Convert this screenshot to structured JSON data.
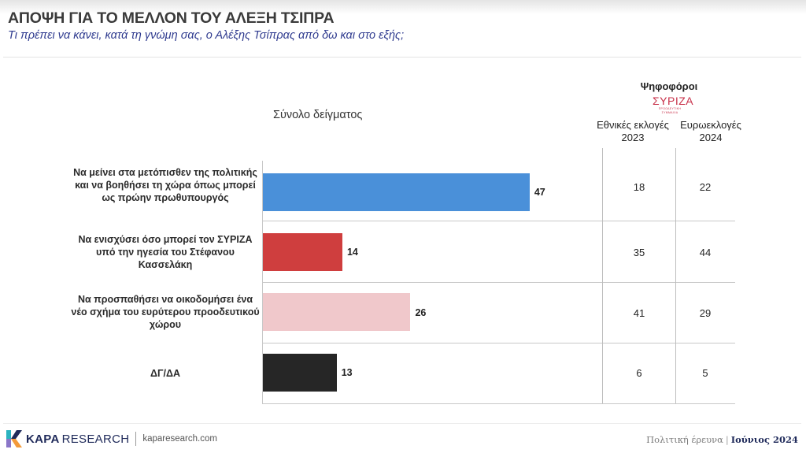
{
  "header": {
    "title": "ΑΠΟΨΗ ΓΙΑ ΤΟ ΜΕΛΛΟΝ ΤΟΥ ΑΛΕΞΗ ΤΣΙΠΡΑ",
    "subtitle": "Τι πρέπει να κάνει, κατά τη γνώμη σας, ο Αλέξης Τσίπρας από δω και στο εξής;"
  },
  "chart": {
    "sample_label": "Σύνολο δείγματος",
    "voters_heading": "Ψηφοφόροι",
    "party_logo": {
      "word": "ΣΥΡΙΖΑ",
      "tagline": "ΠΡΟΟΔΕΥΤΙΚΗ ΣΥΜΜΑΧΙΑ",
      "icon": "syriza-logo",
      "color": "#c8314a"
    },
    "columns": [
      {
        "line1": "Εθνικές εκλογές",
        "line2": "2023"
      },
      {
        "line1": "Ευρωεκλογές",
        "line2": "2024"
      }
    ],
    "rows": [
      {
        "label": "Να μείνει στα μετόπισθεν της πολιτικής και να βοηθήσει τη χώρα όπως μπορεί ως πρώην πρωθυπουργός",
        "value": "47",
        "col1": "18",
        "col2": "22",
        "color": "#4a90d9"
      },
      {
        "label": "Να ενισχύσει όσο μπορεί τον ΣΥΡΙΖΑ υπό την ηγεσία του Στέφανου Κασσελάκη",
        "value": "14",
        "col1": "35",
        "col2": "44",
        "color": "#cf3e3e"
      },
      {
        "label": "Να προσπαθήσει να οικοδομήσει ένα νέο σχήμα του ευρύτερου προοδευτικού χώρου",
        "value": "26",
        "col1": "41",
        "col2": "29",
        "color": "#f0c8cb"
      },
      {
        "label": "ΔΓ/ΔΑ",
        "value": "13",
        "col1": "6",
        "col2": "5",
        "color": "#262626"
      }
    ]
  },
  "chart_data": {
    "type": "bar",
    "orientation": "horizontal",
    "title": "ΑΠΟΨΗ ΓΙΑ ΤΟ ΜΕΛΛΟΝ ΤΟΥ ΑΛΕΞΗ ΤΣΙΠΡΑ",
    "subtitle": "Τι πρέπει να κάνει, κατά τη γνώμη σας, ο Αλέξης Τσίπρας από δω και στο εξής;",
    "categories": [
      "Να μείνει στα μετόπισθεν της πολιτικής και να βοηθήσει τη χώρα όπως μπορεί ως πρώην πρωθυπουργός",
      "Να ενισχύσει όσο μπορεί τον ΣΥΡΙΖΑ υπό την ηγεσία του Στέφανου Κασσελάκη",
      "Να προσπαθήσει να οικοδομήσει ένα νέο σχήμα του ευρύτερου προοδευτικού χώρου",
      "ΔΓ/ΔΑ"
    ],
    "series": [
      {
        "name": "Σύνολο δείγματος",
        "values": [
          47,
          14,
          26,
          13
        ],
        "colors": [
          "#4a90d9",
          "#cf3e3e",
          "#f0c8cb",
          "#262626"
        ]
      }
    ],
    "table": {
      "group_heading": "Ψηφοφόροι ΣΥΡΙΖΑ",
      "columns": [
        "Εθνικές εκλογές 2023",
        "Ευρωεκλογές 2024"
      ],
      "values": [
        [
          18,
          22
        ],
        [
          35,
          44
        ],
        [
          41,
          29
        ],
        [
          6,
          5
        ]
      ]
    },
    "xlabel": "",
    "ylabel": "",
    "xlim": [
      0,
      60
    ],
    "grid": false,
    "legend": "none",
    "data_labels": true
  },
  "footer": {
    "brand_bold": "KAPA",
    "brand_light": "RESEARCH",
    "url": "kaparesearch.com",
    "section": "Πολιτική έρευνα",
    "separator": "|",
    "date": "Ιούνιος 2024"
  }
}
